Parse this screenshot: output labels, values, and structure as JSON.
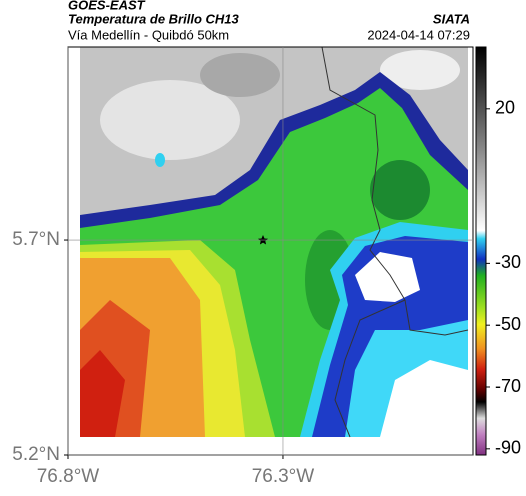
{
  "header": {
    "source": "GOES-EAST",
    "title": "Temperatura de Brillo CH13",
    "org": "SIATA",
    "subtitle": "Vía Medellín - Quibdó 50km",
    "timestamp": "2024-04-14 07:29"
  },
  "map": {
    "xlim": [
      -76.8,
      -75.858
    ],
    "ylim": [
      5.2,
      6.149
    ],
    "xticks": [
      {
        "value": -76.8,
        "label": "76.8°W"
      },
      {
        "value": -76.3,
        "label": "76.3°W"
      }
    ],
    "yticks": [
      {
        "value": 5.2,
        "label": "5.2°N"
      },
      {
        "value": 5.7,
        "label": "5.7°N"
      }
    ],
    "grid": true
  },
  "colorbar": {
    "lim": [
      -92,
      40
    ],
    "ticks": [
      20,
      -30,
      -50,
      -70,
      -90
    ]
  }
}
